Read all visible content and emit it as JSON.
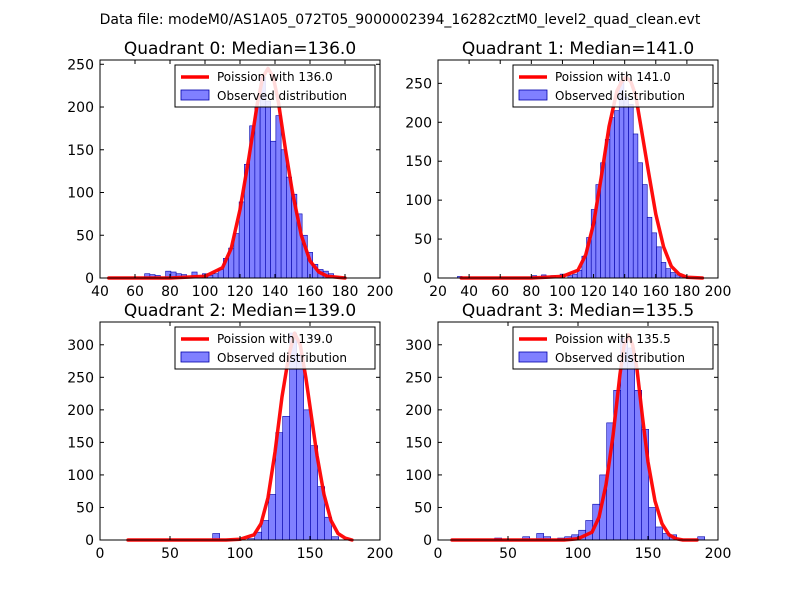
{
  "figure": {
    "suptitle": "Data file: modeM0/AS1A05_072T05_9000002394_16282cztM0_level2_quad_clean.evt"
  },
  "colors": {
    "hist_fill": "#8080ff",
    "hist_edge": "#0000aa",
    "curve": "#ff0000",
    "legend_border": "#000000"
  },
  "chart_data": [
    {
      "type": "bar+line",
      "title": "Quadrant 0: Median=136.0",
      "median": 136.0,
      "xlim": [
        40,
        200
      ],
      "ylim": [
        0,
        255
      ],
      "xticks": [
        40,
        60,
        80,
        100,
        120,
        140,
        160,
        180,
        200
      ],
      "yticks": [
        0,
        50,
        100,
        150,
        200,
        250
      ],
      "bin_width": 3,
      "hist": {
        "name": "Observed distribution",
        "x": [
          67,
          70,
          73,
          76,
          79,
          82,
          85,
          88,
          91,
          94,
          97,
          100,
          103,
          106,
          109,
          112,
          115,
          118,
          121,
          124,
          127,
          130,
          133,
          136,
          139,
          142,
          145,
          148,
          151,
          154,
          157,
          160,
          163,
          166,
          169,
          172,
          175,
          178
        ],
        "values": [
          5,
          4,
          3,
          0,
          8,
          7,
          5,
          4,
          0,
          7,
          0,
          5,
          3,
          5,
          10,
          23,
          35,
          52,
          89,
          133,
          178,
          200,
          235,
          207,
          160,
          190,
          150,
          118,
          98,
          75,
          50,
          30,
          16,
          10,
          8,
          5,
          2,
          1
        ]
      },
      "curve": {
        "name": "Poission with 136.0",
        "x": [
          45,
          80,
          100,
          110,
          115,
          120,
          125,
          130,
          133,
          136,
          139,
          142,
          146,
          150,
          155,
          160,
          165,
          170,
          180
        ],
        "y": [
          0,
          0,
          2,
          12,
          35,
          80,
          140,
          205,
          235,
          245,
          235,
          205,
          150,
          100,
          50,
          20,
          7,
          2,
          0
        ]
      }
    },
    {
      "type": "bar+line",
      "title": "Quadrant 1: Median=141.0",
      "median": 141.0,
      "xlim": [
        20,
        200
      ],
      "ylim": [
        0,
        280
      ],
      "xticks": [
        20,
        40,
        60,
        80,
        100,
        120,
        140,
        160,
        180,
        200
      ],
      "yticks": [
        0,
        50,
        100,
        150,
        200,
        250
      ],
      "bin_width": 3,
      "hist": {
        "name": "Observed distribution",
        "x": [
          34,
          82,
          88,
          94,
          100,
          105,
          108,
          111,
          114,
          117,
          120,
          123,
          126,
          129,
          132,
          135,
          138,
          141,
          144,
          147,
          150,
          153,
          156,
          159,
          162,
          165,
          168,
          171,
          174,
          177,
          180
        ],
        "values": [
          2,
          3,
          4,
          3,
          5,
          3,
          5,
          10,
          28,
          52,
          88,
          120,
          148,
          178,
          206,
          215,
          253,
          232,
          223,
          185,
          148,
          120,
          78,
          58,
          40,
          20,
          12,
          7,
          4,
          2,
          1
        ]
      },
      "curve": {
        "name": "Poission with 141.0",
        "x": [
          35,
          80,
          100,
          110,
          115,
          120,
          125,
          130,
          135,
          138,
          141,
          144,
          147,
          150,
          155,
          160,
          165,
          170,
          175,
          180,
          190
        ],
        "y": [
          0,
          0,
          2,
          10,
          30,
          70,
          130,
          195,
          240,
          252,
          258,
          252,
          235,
          200,
          140,
          82,
          40,
          15,
          5,
          1,
          0
        ]
      }
    },
    {
      "type": "bar+line",
      "title": "Quadrant 2: Median=139.0",
      "median": 139.0,
      "xlim": [
        0,
        200
      ],
      "ylim": [
        0,
        335
      ],
      "xticks": [
        0,
        50,
        100,
        150,
        200
      ],
      "yticks": [
        0,
        50,
        100,
        150,
        200,
        250,
        300
      ],
      "bin_width": 5,
      "hist": {
        "name": "Observed distribution",
        "x": [
          83,
          108,
          113,
          118,
          123,
          128,
          133,
          138,
          143,
          148,
          153,
          158,
          163,
          168
        ],
        "values": [
          10,
          2,
          12,
          30,
          70,
          165,
          190,
          318,
          285,
          200,
          145,
          82,
          35,
          5
        ]
      },
      "curve": {
        "name": "Poission with 139.0",
        "x": [
          20,
          90,
          100,
          110,
          115,
          120,
          125,
          130,
          135,
          139,
          143,
          147,
          150,
          155,
          160,
          165,
          170,
          175,
          180
        ],
        "y": [
          0,
          0,
          1,
          8,
          25,
          65,
          135,
          220,
          285,
          318,
          300,
          250,
          205,
          130,
          70,
          30,
          10,
          3,
          0
        ]
      }
    },
    {
      "type": "bar+line",
      "title": "Quadrant 3: Median=135.5",
      "median": 135.5,
      "xlim": [
        0,
        200
      ],
      "ylim": [
        0,
        335
      ],
      "xticks": [
        0,
        50,
        100,
        150,
        200
      ],
      "yticks": [
        0,
        50,
        100,
        150,
        200,
        250,
        300
      ],
      "bin_width": 5,
      "hist": {
        "name": "Observed distribution",
        "x": [
          43,
          63,
          73,
          78,
          88,
          93,
          98,
          103,
          108,
          113,
          118,
          123,
          128,
          133,
          138,
          143,
          148,
          153,
          158,
          163,
          168,
          188
        ],
        "values": [
          3,
          5,
          10,
          5,
          3,
          5,
          8,
          15,
          30,
          55,
          100,
          180,
          230,
          310,
          295,
          230,
          170,
          50,
          20,
          10,
          8,
          5
        ]
      },
      "curve": {
        "name": "Poission with 135.5",
        "x": [
          10,
          90,
          100,
          110,
          115,
          120,
          125,
          130,
          133,
          136,
          139,
          142,
          146,
          150,
          155,
          160,
          165,
          170,
          175,
          185
        ],
        "y": [
          0,
          0,
          2,
          12,
          35,
          85,
          160,
          255,
          300,
          315,
          300,
          265,
          190,
          120,
          60,
          25,
          8,
          2,
          0,
          0
        ]
      }
    }
  ]
}
